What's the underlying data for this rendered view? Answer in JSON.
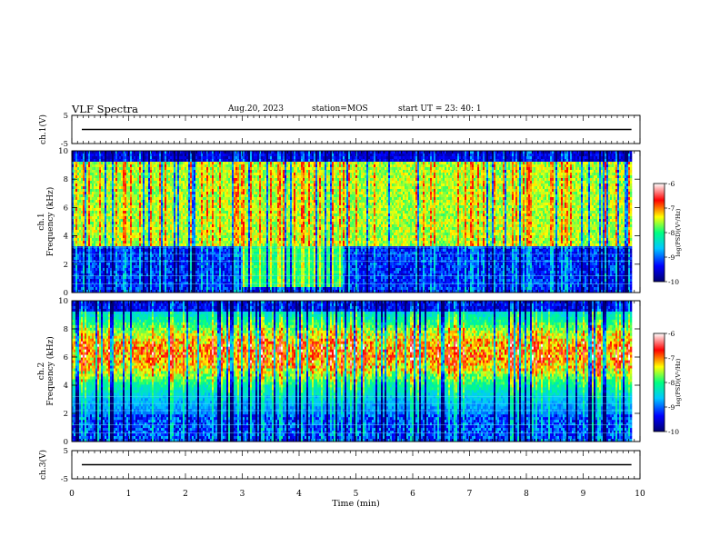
{
  "header": {
    "title": "VLF Spectra",
    "date": "Aug.20, 2023",
    "station": "station=MOS",
    "start_ut": "start  UT =   23: 40: 1"
  },
  "chart_data": [
    {
      "id": "ch1-waveform",
      "type": "line",
      "ylabel": "ch.1(V)",
      "ylim": [
        -5,
        5
      ],
      "yticks": [
        5,
        -5
      ],
      "xlim": [
        0,
        10
      ],
      "trace_level": 0,
      "trace_end": 9.85
    },
    {
      "id": "ch1-spectrogram",
      "type": "heatmap",
      "ylabel_line1": "ch.1",
      "ylabel_line2": "Frequency (kHz)",
      "ylim": [
        0,
        10
      ],
      "yticks": [
        0,
        2,
        4,
        6,
        8,
        10
      ],
      "xlim": [
        0,
        10
      ],
      "data_end_min": 9.85,
      "colorbar": {
        "label": "log(PSD)(V²/Hz)",
        "range": [
          -10,
          -6
        ],
        "ticks": [
          -6,
          -7,
          -8,
          -9,
          -10
        ]
      },
      "features": {
        "broadband_interval_min": [
          3.0,
          4.75
        ],
        "broadband_band_khz": [
          0.3,
          3.2
        ],
        "main_band_khz": [
          3.5,
          9.2
        ]
      }
    },
    {
      "id": "ch2-spectrogram",
      "type": "heatmap",
      "ylabel_line1": "ch.2",
      "ylabel_line2": "Frequency (kHz)",
      "ylim": [
        0,
        10
      ],
      "yticks": [
        0,
        2,
        4,
        6,
        8,
        10
      ],
      "xlim": [
        0,
        10
      ],
      "data_end_min": 9.85,
      "colorbar": {
        "label": "log(PSD)(V²/Hz)",
        "range": [
          -10,
          -6
        ],
        "ticks": [
          -6,
          -7,
          -8,
          -9,
          -10
        ]
      },
      "features": {
        "peak_band_khz": [
          5.0,
          8.0
        ]
      }
    },
    {
      "id": "ch3-waveform",
      "type": "line",
      "ylabel": "ch.3(V)",
      "ylim": [
        -5,
        5
      ],
      "yticks": [
        5,
        -5
      ],
      "xlim": [
        0,
        10
      ],
      "trace_level": 0,
      "trace_end": 9.85,
      "xlabel": "Time (min)",
      "xticks": [
        0,
        1,
        2,
        3,
        4,
        5,
        6,
        7,
        8,
        9,
        10
      ]
    }
  ],
  "colors": {
    "colormap": [
      "#000070",
      "#0000ff",
      "#00c8ff",
      "#00ff80",
      "#ffff00",
      "#ff0000",
      "#ffffff"
    ],
    "axis": "#000000"
  }
}
